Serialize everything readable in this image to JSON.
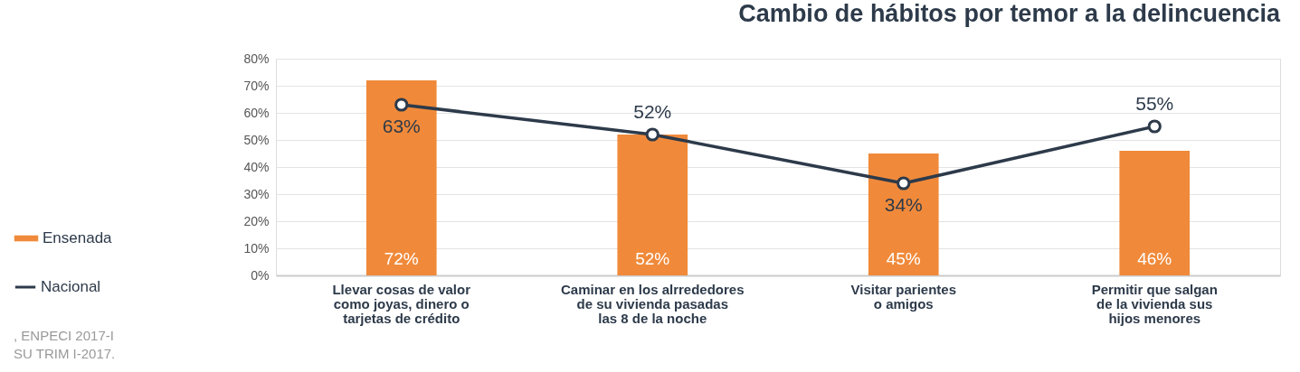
{
  "chart_data": {
    "type": "bar",
    "title": "Cambio de hábitos por temor a la delincuencia",
    "categories": [
      "Llevar cosas de valor\ncomo joyas, dinero o\ntarjetas de crédito",
      "Caminar en los alrrededores\nde su vivienda pasadas\nlas 8 de la noche",
      "Visitar parientes\no amigos",
      "Permitir que salgan\nde la vivienda sus\nhijos menores"
    ],
    "series": [
      {
        "name": "Ensenada",
        "color": "#f08a3a",
        "values": [
          72,
          52,
          45,
          46
        ],
        "value_labels": [
          "72%",
          "52%",
          "45%",
          "46%"
        ]
      },
      {
        "name": "Nacional",
        "type": "line",
        "color": "#2d3a4a",
        "values": [
          63,
          52,
          34,
          55
        ],
        "value_labels": [
          "63%",
          "52%",
          "34%",
          "55%"
        ],
        "marker": "circle",
        "line_style": "solid"
      }
    ],
    "ylim": [
      0,
      80
    ],
    "yticks": [
      {
        "value": 0,
        "label": "0%"
      },
      {
        "value": 10,
        "label": "10%"
      },
      {
        "value": 20,
        "label": "20%"
      },
      {
        "value": 30,
        "label": "30%"
      },
      {
        "value": 40,
        "label": "40%"
      },
      {
        "value": 50,
        "label": "50%"
      },
      {
        "value": 60,
        "label": "60%"
      },
      {
        "value": 70,
        "label": "70%"
      },
      {
        "value": 80,
        "label": "80%"
      }
    ],
    "grid": "y",
    "legend": "left",
    "annotations": [
      ", ENPECI 2017-I",
      "SU TRIM I-2017."
    ]
  }
}
